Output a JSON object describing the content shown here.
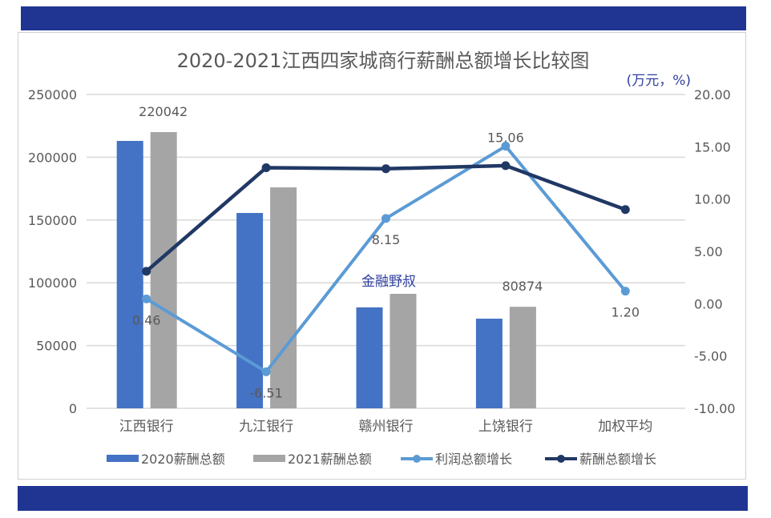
{
  "chart_data": {
    "type": "bar",
    "title": "2020-2021江西四家城商行薪酬总额增长比较图",
    "unit_label": "(万元，%)",
    "watermark": "金融野叔",
    "categories": [
      "江西银行",
      "九江银行",
      "赣州银行",
      "上饶银行",
      "加权平均"
    ],
    "left_axis": {
      "ylim": [
        0,
        250000
      ],
      "ticks": [
        "0",
        "50000",
        "100000",
        "150000",
        "200000",
        "250000"
      ]
    },
    "right_axis": {
      "ylim": [
        -10,
        20
      ],
      "ticks": [
        "-10.00",
        "-5.00",
        "0.00",
        "5.00",
        "10.00",
        "15.00",
        "20.00"
      ]
    },
    "grid": true,
    "legend_position": "bottom",
    "series": [
      {
        "name": "2020薪酬总额",
        "type": "bar",
        "axis": "left",
        "color": "#4472c4",
        "values": [
          213000,
          155600,
          80400,
          71400,
          null
        ]
      },
      {
        "name": "2021薪酬总额",
        "type": "bar",
        "axis": "left",
        "color": "#a5a5a5",
        "values": [
          220042,
          176000,
          91200,
          80874,
          null
        ],
        "data_labels": [
          "220042",
          "",
          "",
          "80874",
          ""
        ]
      },
      {
        "name": "利润总额增长",
        "type": "line",
        "axis": "right",
        "color": "#5b9bd5",
        "values": [
          0.46,
          -6.51,
          8.15,
          15.06,
          1.2
        ],
        "data_labels": [
          "0.46",
          "-6.51",
          "8.15",
          "15.06",
          "1.20"
        ]
      },
      {
        "name": "薪酬总额增长",
        "type": "line",
        "axis": "right",
        "color": "#203864",
        "values": [
          3.1,
          13.0,
          12.9,
          13.2,
          9.0
        ]
      }
    ]
  }
}
